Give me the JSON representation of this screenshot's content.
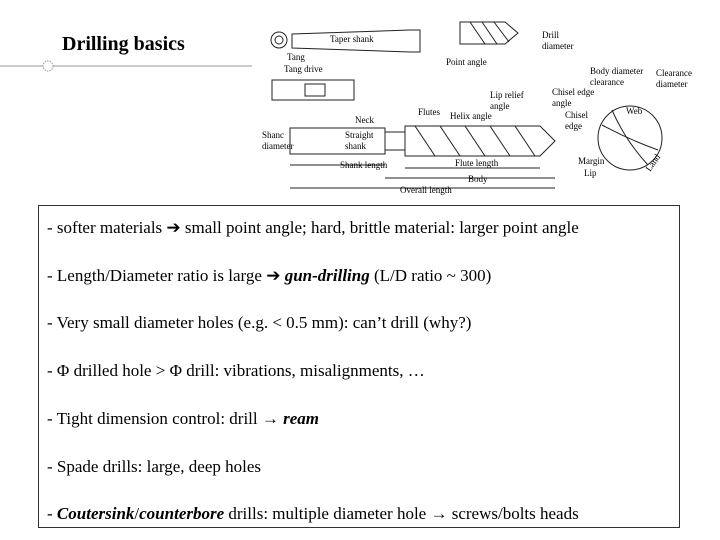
{
  "header": {
    "title": "Drilling basics"
  },
  "diagram": {
    "labels": [
      {
        "lines": [
          "Taper shank"
        ]
      },
      {
        "lines": [
          "Tang"
        ]
      },
      {
        "lines": [
          "Tang drive"
        ]
      },
      {
        "lines": [
          "Drill",
          "diameter"
        ]
      },
      {
        "lines": [
          "Point angle"
        ]
      },
      {
        "lines": [
          "Body diameter",
          "clearance"
        ]
      },
      {
        "lines": [
          "Clearance",
          "diameter"
        ]
      },
      {
        "lines": [
          "Lip relief",
          "angle"
        ]
      },
      {
        "lines": [
          "Chisel edge",
          "angle"
        ]
      },
      {
        "lines": [
          "Chisel",
          "edge"
        ]
      },
      {
        "lines": [
          "Web"
        ]
      },
      {
        "lines": [
          "Flutes"
        ]
      },
      {
        "lines": [
          "Helix angle"
        ]
      },
      {
        "lines": [
          "Neck"
        ]
      },
      {
        "lines": [
          "Shanc",
          "diameter"
        ]
      },
      {
        "lines": [
          "Straight",
          "shank"
        ]
      },
      {
        "lines": [
          "Shank length"
        ]
      },
      {
        "lines": [
          "Flute length"
        ]
      },
      {
        "lines": [
          "Body"
        ]
      },
      {
        "lines": [
          "Overall length"
        ]
      },
      {
        "lines": [
          "Margin"
        ]
      },
      {
        "lines": [
          "Lip"
        ]
      },
      {
        "lines": [
          "Land"
        ]
      }
    ]
  },
  "bullets": [
    [
      "- softer materials ➔ small point angle; hard, brittle material: larger point angle"
    ],
    [
      "- Length/Diameter ratio is large ➔ ",
      {
        "text": "gun-drilling",
        "style": "bold-italic"
      },
      " (L/D ratio ~ 300)"
    ],
    [
      "- Very small diameter holes (e.g. < 0.5 mm): can’t drill (why?)"
    ],
    [
      "- Φ drilled hole  >  Φ drill: vibrations, misalignments, …"
    ],
    [
      "- Tight dimension control: drill → ",
      {
        "text": "ream",
        "style": "bold-italic"
      }
    ],
    [
      "- Spade drills: large, deep holes"
    ],
    [
      "- ",
      {
        "text": "Coutersink",
        "style": "bold-italic"
      },
      "/",
      {
        "text": "counterbore",
        "style": "bold-italic"
      },
      " drills: multiple diameter hole → screws/bolts heads"
    ]
  ]
}
